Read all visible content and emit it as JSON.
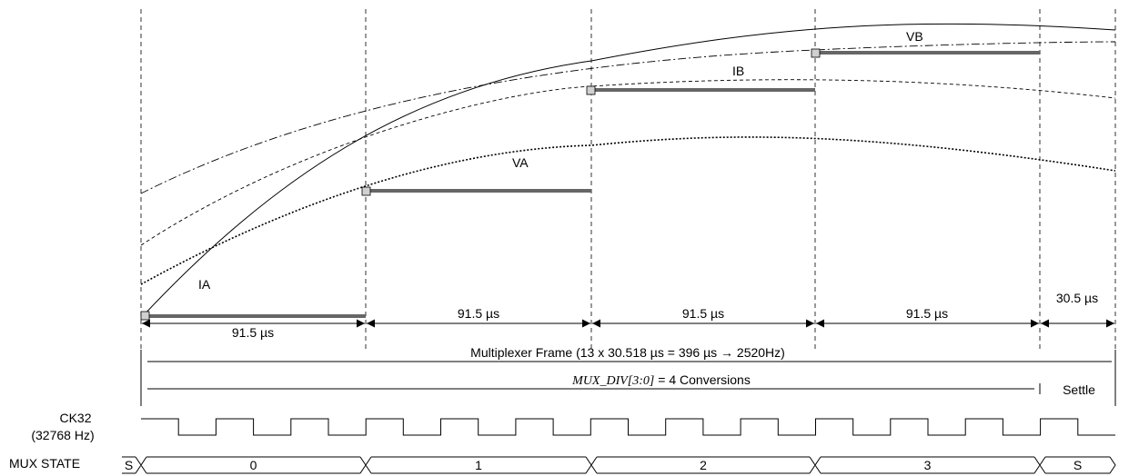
{
  "waveforms": {
    "ia": "IA",
    "va": "VA",
    "ib": "IB",
    "vb": "VB"
  },
  "durations": {
    "d0_top": "91.5 µs",
    "d0_bottom": "91.5 µs",
    "d1": "91.5 µs",
    "d2": "91.5 µs",
    "d3": "91.5 µs",
    "settle": "30.5 µs"
  },
  "frame": {
    "label": "Multiplexer Frame (13 x 30.518 µs = 396 µs → 2520Hz)",
    "mux_div_name": "MUX_DIV[3:0]",
    "mux_div_rest": " = 4 Conversions",
    "settle_label": "Settle"
  },
  "clock": {
    "name": "CK32",
    "freq": "(32768 Hz)"
  },
  "mux_state": {
    "label": "MUX STATE",
    "states": [
      "S",
      "0",
      "1",
      "2",
      "3",
      "S"
    ]
  }
}
